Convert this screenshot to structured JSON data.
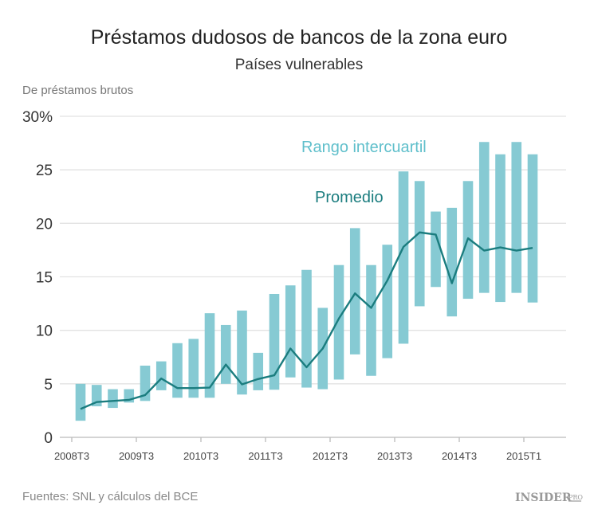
{
  "chart_data": {
    "type": "bar",
    "title": "Préstamos dudosos de bancos de la zona euro",
    "subtitle": "Países vulnerables",
    "ylabel": "De préstamos brutos",
    "ylim": [
      0,
      30
    ],
    "y_ticks": [
      0,
      5,
      10,
      15,
      20,
      25,
      30
    ],
    "y_tick_labels": [
      "0",
      "5",
      "10",
      "15",
      "20",
      "25",
      "30%"
    ],
    "x_tick_labels": [
      "2008T3",
      "2009T3",
      "2010T3",
      "2011T3",
      "2012T3",
      "2013T3",
      "2014T3",
      "2015T1"
    ],
    "grid": true,
    "series": [
      {
        "name": "Rango intercuartil",
        "kind": "range-bar",
        "color": "#86cad3",
        "low": [
          1.55,
          2.9,
          2.75,
          3.25,
          3.4,
          4.4,
          3.7,
          3.7,
          3.7,
          5.0,
          4.0,
          4.4,
          4.45,
          5.6,
          4.65,
          4.5,
          5.4,
          7.75,
          5.75,
          7.4,
          8.75,
          12.25,
          14.05,
          11.3,
          12.95,
          13.5,
          12.65,
          13.5,
          12.6
        ],
        "high": [
          5.0,
          4.9,
          4.5,
          4.5,
          6.7,
          7.1,
          8.8,
          9.2,
          11.6,
          10.5,
          11.85,
          7.9,
          13.4,
          14.2,
          15.65,
          12.1,
          16.1,
          19.55,
          16.1,
          18.0,
          24.85,
          23.95,
          21.1,
          21.45,
          23.95,
          27.6,
          26.45,
          27.6,
          26.45
        ]
      },
      {
        "name": "Promedio",
        "kind": "line",
        "color": "#1b7d7f",
        "values": [
          2.65,
          3.3,
          3.4,
          3.5,
          3.95,
          5.5,
          4.6,
          4.6,
          4.65,
          6.8,
          4.95,
          5.45,
          5.8,
          8.3,
          6.55,
          8.3,
          11.1,
          13.45,
          12.1,
          14.65,
          17.8,
          19.15,
          18.95,
          14.4,
          18.6,
          17.45,
          17.75,
          17.45,
          17.7
        ]
      }
    ],
    "source": "Fuentes: SNL y cálculos del BCE"
  },
  "labels": {
    "range_label_color": "#5fbfcb",
    "mean_label_color": "#1b7d7f"
  },
  "logo": {
    "text": "INSIDER",
    "suffix": "PRO"
  }
}
